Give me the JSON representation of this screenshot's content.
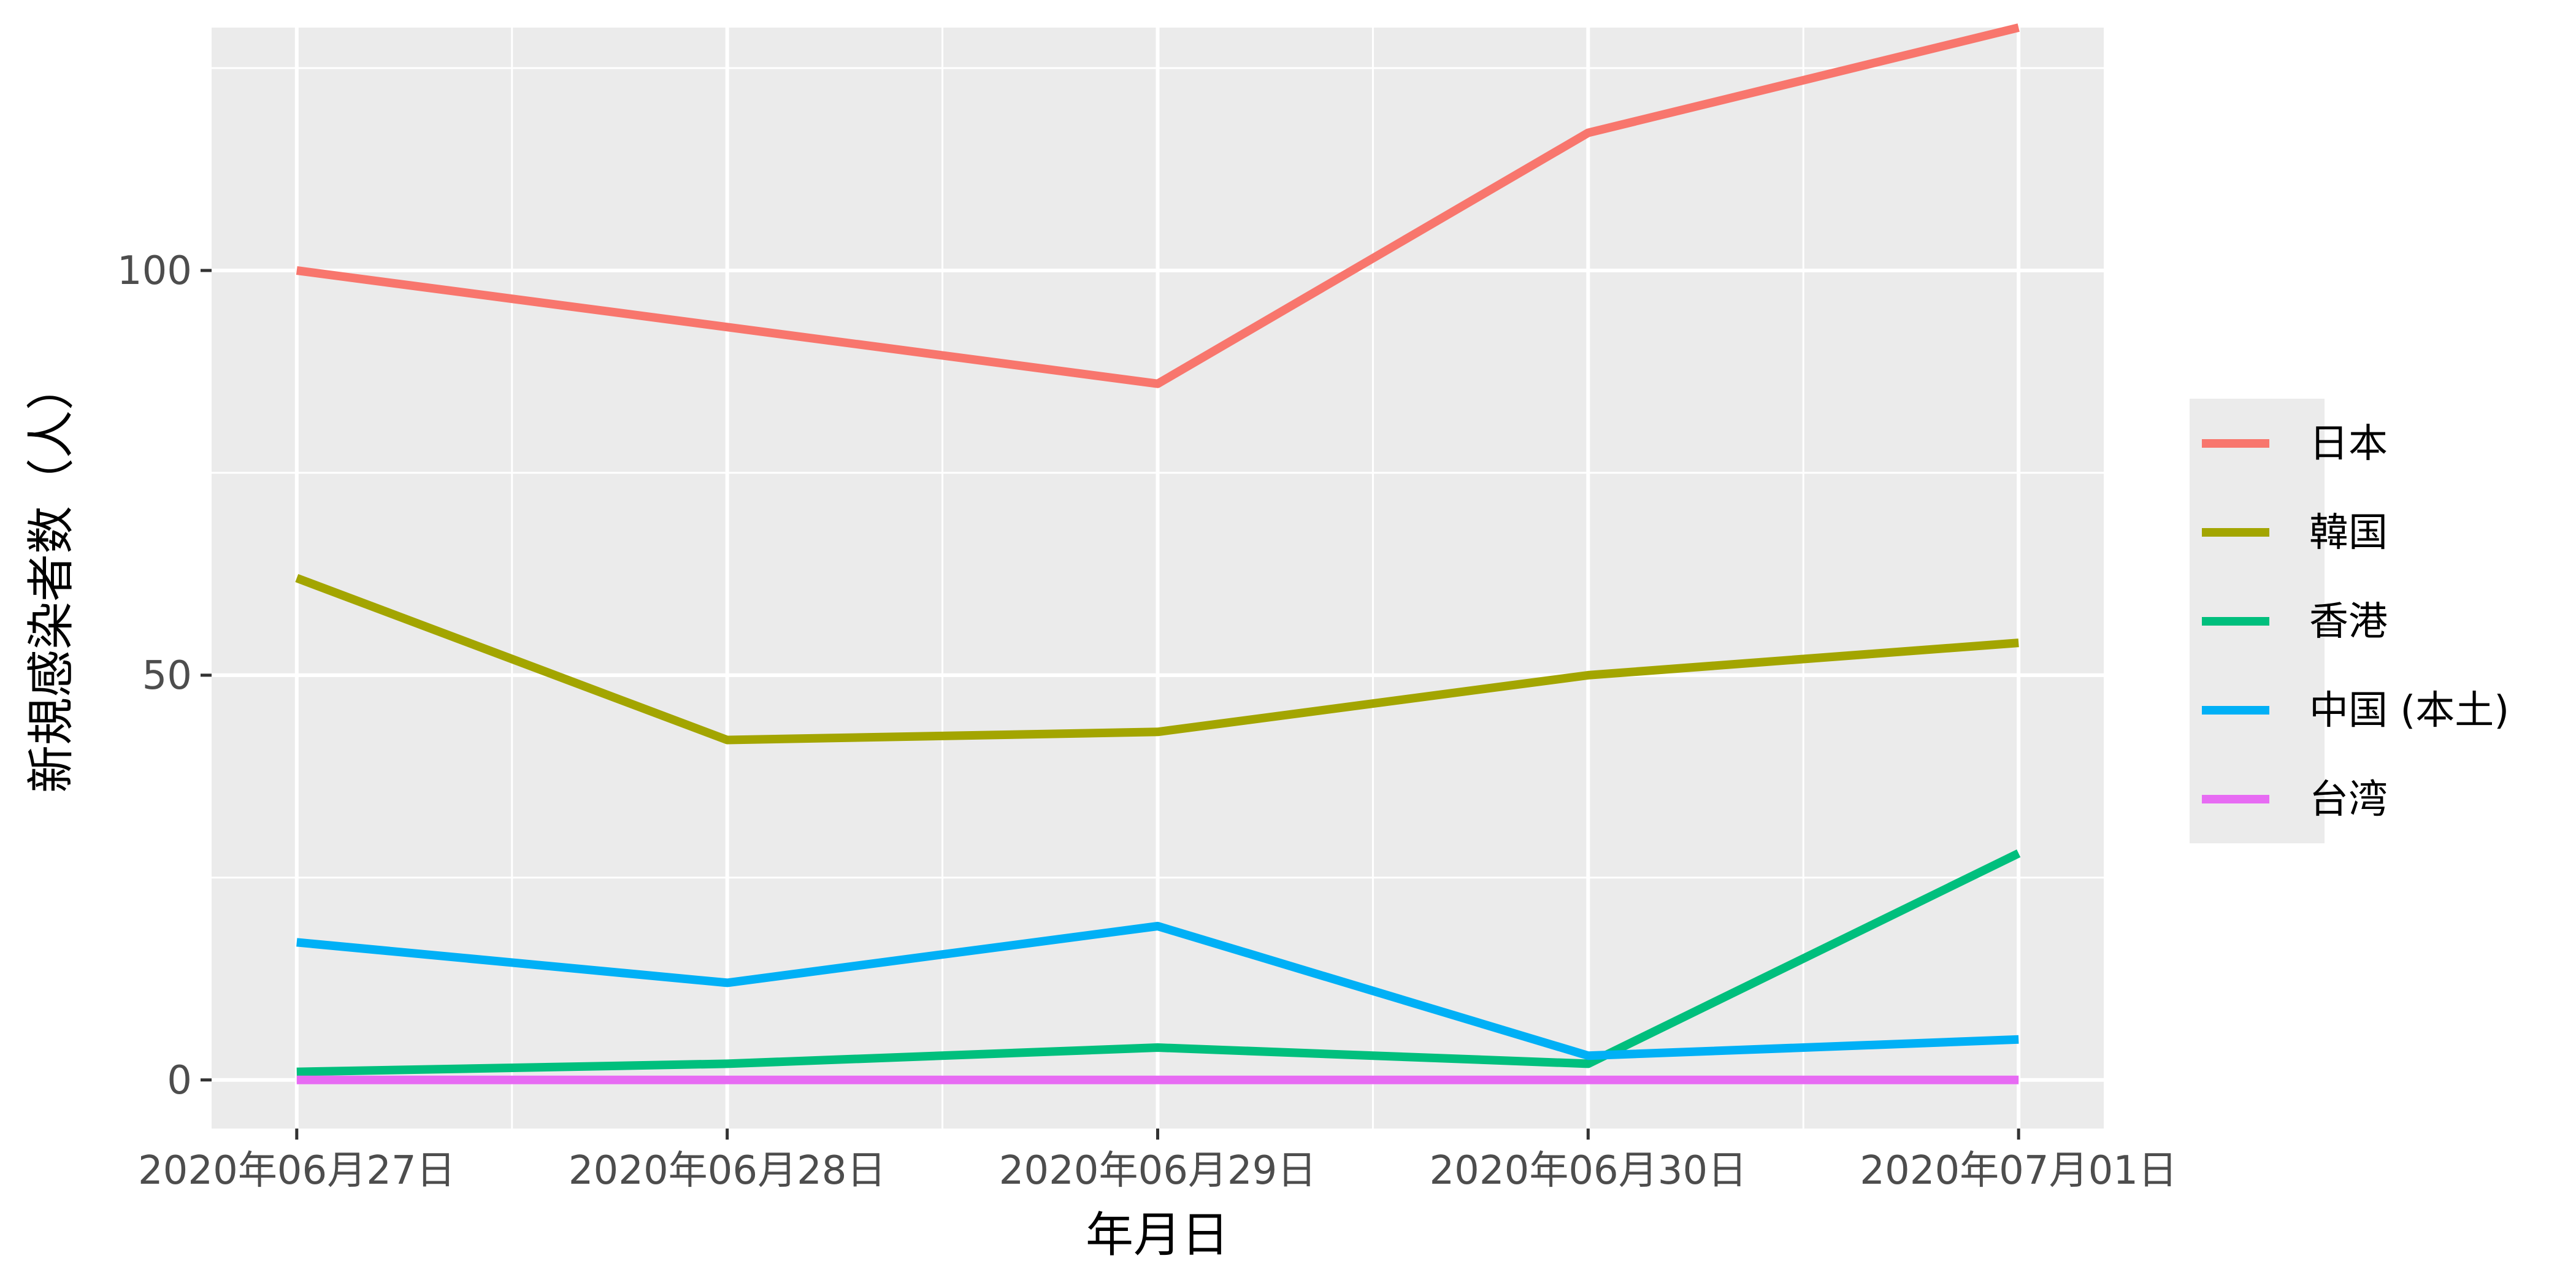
{
  "chart_data": {
    "type": "line",
    "xlabel": "年月日",
    "ylabel": "新規感染者数（人）",
    "x": [
      "2020年06月27日",
      "2020年06月28日",
      "2020年06月29日",
      "2020年06月30日",
      "2020年07月01日"
    ],
    "y_ticks": [
      0,
      50,
      100
    ],
    "ylim": [
      -6,
      130
    ],
    "grid": true,
    "legend_position": "right",
    "series": [
      {
        "name": "日本",
        "color": "#F8766D",
        "values": [
          100,
          93,
          86,
          117,
          130
        ]
      },
      {
        "name": "韓国",
        "color": "#A3A500",
        "values": [
          62,
          42,
          43,
          50,
          54
        ]
      },
      {
        "name": "香港",
        "color": "#00BF7D",
        "values": [
          1,
          2,
          4,
          2,
          28
        ]
      },
      {
        "name": "中国 (本土)",
        "color": "#00B0F6",
        "values": [
          17,
          12,
          19,
          3,
          5
        ]
      },
      {
        "name": "台湾",
        "color": "#E76BF3",
        "values": [
          0,
          0,
          0,
          0,
          0
        ]
      }
    ]
  }
}
